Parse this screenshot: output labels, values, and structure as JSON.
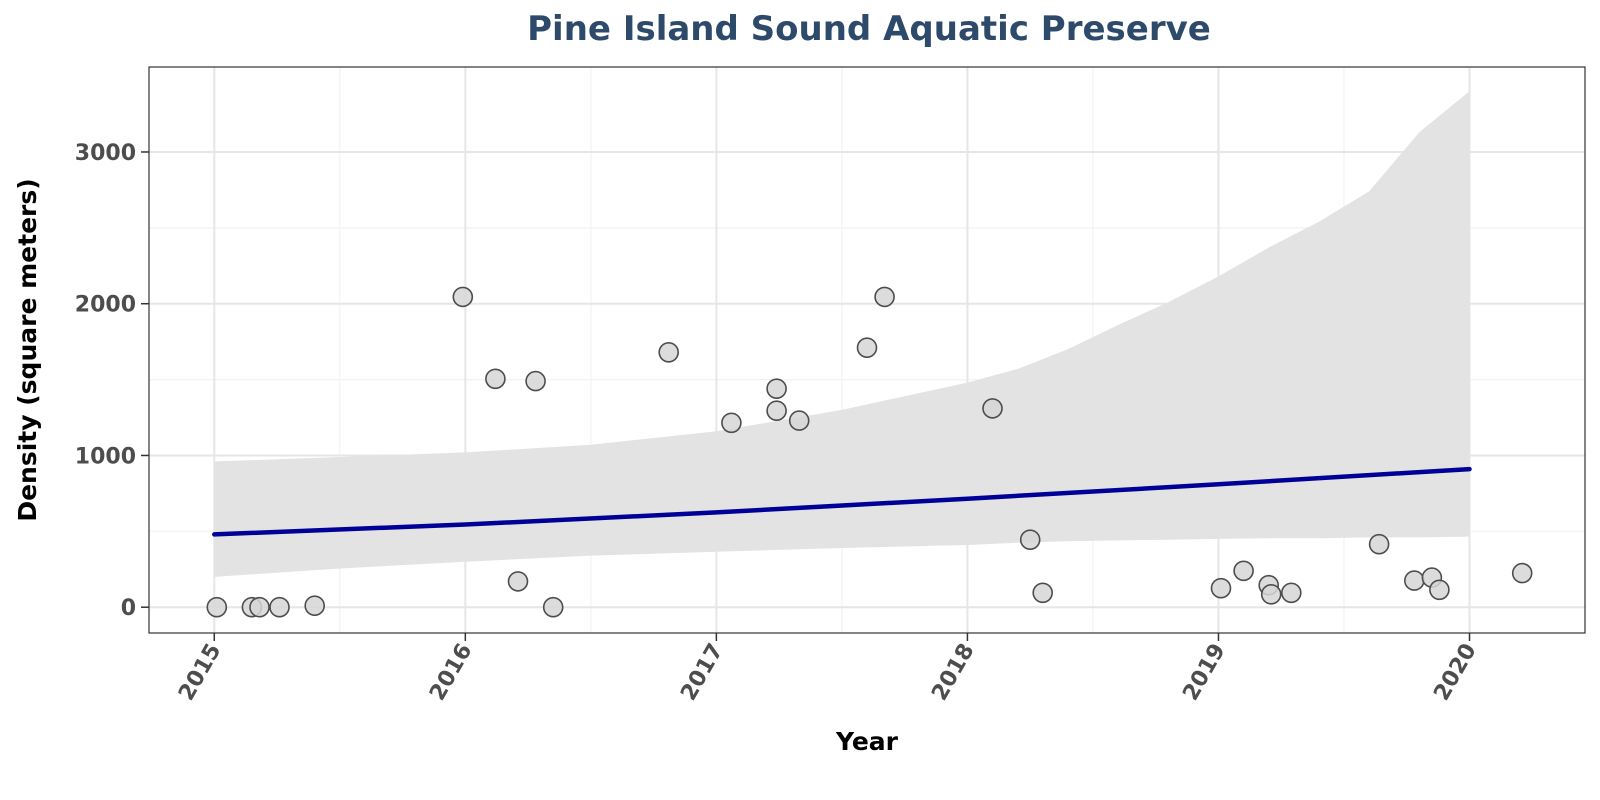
{
  "chart_data": {
    "type": "scatter",
    "title": "Pine Island Sound Aquatic Preserve",
    "xlabel": "Year",
    "ylabel": "Density (square meters)",
    "x_ticks": [
      "2015",
      "2016",
      "2017",
      "2018",
      "2019",
      "2020"
    ],
    "y_ticks": [
      "0",
      "1000",
      "2000",
      "3000"
    ],
    "xlim": [
      2014.74,
      2020.46
    ],
    "ylim": [
      -170,
      3560
    ],
    "grid": true,
    "colors": {
      "title": "#2e4a6b",
      "points_fill": "#d6d6d6",
      "points_stroke": "#4d4d4d",
      "trend": "#000099",
      "band": "#e3e3e3",
      "grid_major": "#e6e6e6",
      "grid_minor": "#f2f2f2",
      "panel_border": "#333333"
    },
    "series": [
      {
        "type": "scatter",
        "points": [
          {
            "x": 2015.01,
            "y": 0
          },
          {
            "x": 2015.15,
            "y": 0
          },
          {
            "x": 2015.18,
            "y": 0
          },
          {
            "x": 2015.26,
            "y": 0
          },
          {
            "x": 2015.4,
            "y": 10
          },
          {
            "x": 2015.99,
            "y": 2045
          },
          {
            "x": 2016.12,
            "y": 1505
          },
          {
            "x": 2016.21,
            "y": 170
          },
          {
            "x": 2016.28,
            "y": 1490
          },
          {
            "x": 2016.35,
            "y": 0
          },
          {
            "x": 2016.81,
            "y": 1680
          },
          {
            "x": 2017.06,
            "y": 1215
          },
          {
            "x": 2017.24,
            "y": 1440
          },
          {
            "x": 2017.24,
            "y": 1295
          },
          {
            "x": 2017.33,
            "y": 1230
          },
          {
            "x": 2017.6,
            "y": 1710
          },
          {
            "x": 2017.67,
            "y": 2045
          },
          {
            "x": 2018.1,
            "y": 1310
          },
          {
            "x": 2018.25,
            "y": 445
          },
          {
            "x": 2018.3,
            "y": 95
          },
          {
            "x": 2019.01,
            "y": 125
          },
          {
            "x": 2019.1,
            "y": 240
          },
          {
            "x": 2019.2,
            "y": 145
          },
          {
            "x": 2019.21,
            "y": 85
          },
          {
            "x": 2019.29,
            "y": 95
          },
          {
            "x": 2019.64,
            "y": 415
          },
          {
            "x": 2019.78,
            "y": 175
          },
          {
            "x": 2019.85,
            "y": 195
          },
          {
            "x": 2019.88,
            "y": 115
          },
          {
            "x": 2020.21,
            "y": 225
          }
        ]
      },
      {
        "type": "line",
        "points": [
          {
            "x": 2015.0,
            "y": 480
          },
          {
            "x": 2016.0,
            "y": 545
          },
          {
            "x": 2017.0,
            "y": 625
          },
          {
            "x": 2018.0,
            "y": 715
          },
          {
            "x": 2019.0,
            "y": 810
          },
          {
            "x": 2020.0,
            "y": 910
          }
        ]
      },
      {
        "type": "area",
        "x": [
          2015.0,
          2015.5,
          2016.0,
          2016.5,
          2017.0,
          2017.5,
          2018.0,
          2018.2,
          2018.4,
          2018.6,
          2018.8,
          2019.0,
          2019.2,
          2019.4,
          2019.6,
          2019.8,
          2020.0
        ],
        "upper": [
          960,
          990,
          1020,
          1070,
          1160,
          1300,
          1480,
          1570,
          1700,
          1860,
          2010,
          2180,
          2370,
          2540,
          2740,
          3130,
          3400
        ],
        "lower": [
          200,
          255,
          300,
          340,
          365,
          390,
          410,
          425,
          435,
          440,
          445,
          450,
          455,
          455,
          460,
          460,
          465
        ]
      }
    ]
  }
}
